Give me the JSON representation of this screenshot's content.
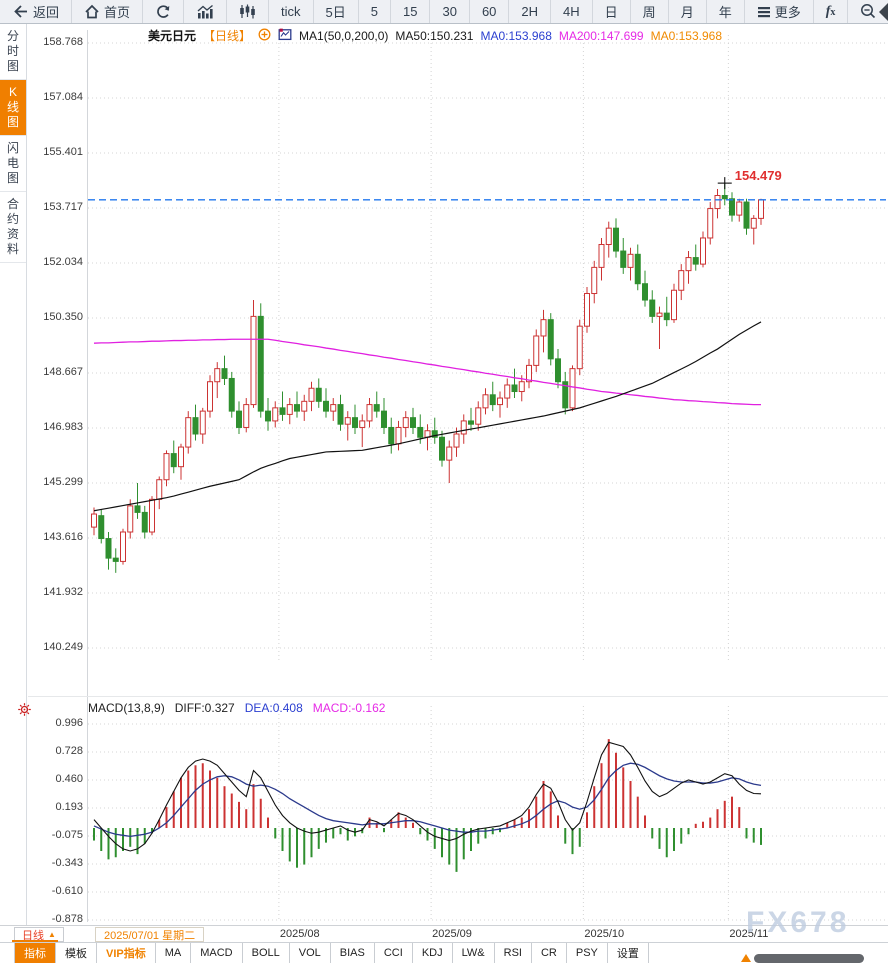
{
  "toolbar": {
    "items": [
      {
        "name": "back",
        "icon": "back",
        "label": "返回"
      },
      {
        "name": "home",
        "icon": "home",
        "label": "首页"
      },
      {
        "name": "refresh",
        "icon": "refresh"
      },
      {
        "name": "bar-chart",
        "icon": "bars"
      },
      {
        "name": "candle-chart",
        "icon": "candles"
      },
      {
        "name": "tick",
        "label": "tick"
      },
      {
        "name": "5d",
        "label": "5日"
      },
      {
        "name": "5min",
        "label": "5"
      },
      {
        "name": "15min",
        "label": "15"
      },
      {
        "name": "30min",
        "label": "30"
      },
      {
        "name": "60min",
        "label": "60"
      },
      {
        "name": "2h",
        "label": "2H"
      },
      {
        "name": "4h",
        "label": "4H"
      },
      {
        "name": "day",
        "label": "日"
      },
      {
        "name": "week",
        "label": "周"
      },
      {
        "name": "month",
        "label": "月"
      },
      {
        "name": "year",
        "label": "年"
      },
      {
        "name": "more",
        "icon": "menu",
        "label": "更多"
      },
      {
        "name": "fx-tool",
        "style": "fx",
        "label": "fx"
      },
      {
        "name": "zoom-out",
        "icon": "zoomout"
      },
      {
        "name": "zoom-in",
        "icon": "zoomin"
      }
    ]
  },
  "sidebar": {
    "items": [
      {
        "label": "分时图",
        "active": false
      },
      {
        "label": "K线图",
        "active": true
      },
      {
        "label": "闪电图",
        "active": false
      },
      {
        "label": "合约资料",
        "active": false
      }
    ]
  },
  "chart_header": {
    "symbol": "美元日元",
    "period_tag": "【日线】",
    "ma_setting": "MA1(50,0,200,0)",
    "ma50": "MA50:150.231",
    "ma0_blue": "MA0:153.968",
    "ma200": "MA200:147.699",
    "ma0_orange": "MA0:153.968"
  },
  "price_tag": "154.479",
  "macd_header": {
    "title": "MACD(13,8,9)",
    "diff": "DIFF:0.327",
    "dea": "DEA:0.408",
    "macd": "MACD:-0.162"
  },
  "xaxis": {
    "period_button": "日线",
    "date_display": "2025/07/01 星期二",
    "months": [
      "2025/08",
      "2025/09",
      "2025/10",
      "2025/11"
    ]
  },
  "watermark": "FX678",
  "bottom_tabs": [
    {
      "label": "指标",
      "active": true
    },
    {
      "label": "模板"
    },
    {
      "label": "VIP指标",
      "vip": true
    },
    {
      "label": "MA"
    },
    {
      "label": "MACD"
    },
    {
      "label": "BOLL"
    },
    {
      "label": "VOL"
    },
    {
      "label": "BIAS"
    },
    {
      "label": "CCI"
    },
    {
      "label": "KDJ"
    },
    {
      "label": "LW&"
    },
    {
      "label": "RSI"
    },
    {
      "label": "CR"
    },
    {
      "label": "PSY"
    },
    {
      "label": "设置"
    }
  ],
  "colors": {
    "accent_orange": "#f08200",
    "up_red": "#cc3333",
    "down_green": "#2f8f2f",
    "ma50_black": "#111111",
    "ma200_magenta": "#e020e0",
    "dea_blue": "#2b3a8c",
    "diff_black": "#111111",
    "dashed_blue": "#2277ee",
    "grid_gray": "#d4d4d4"
  },
  "chart_data": {
    "type": "candlestick+macd",
    "title": "美元日元 日线 (USD/JPY daily with MA50/MA200 and MACD(13,8,9))",
    "main": {
      "y_ticks": [
        "158.768",
        "157.084",
        "155.401",
        "153.717",
        "152.034",
        "150.350",
        "148.667",
        "146.983",
        "145.299",
        "143.616",
        "141.932",
        "140.249"
      ],
      "ylim": [
        140.249,
        158.768
      ],
      "last_price": 153.968,
      "high_price": 154.479,
      "month_boundaries": [
        26,
        47,
        68,
        88
      ],
      "candles": [
        [
          143.95,
          144.55,
          143.7,
          144.35
        ],
        [
          144.3,
          144.5,
          143.45,
          143.6
        ],
        [
          143.6,
          143.8,
          142.65,
          143.0
        ],
        [
          143.0,
          143.3,
          142.55,
          142.9
        ],
        [
          142.9,
          143.9,
          142.8,
          143.8
        ],
        [
          143.8,
          144.8,
          143.6,
          144.6
        ],
        [
          144.6,
          145.3,
          144.2,
          144.4
        ],
        [
          144.4,
          144.6,
          143.6,
          143.8
        ],
        [
          143.8,
          144.9,
          143.7,
          144.8
        ],
        [
          144.8,
          145.5,
          144.5,
          145.4
        ],
        [
          145.4,
          146.3,
          145.2,
          146.2
        ],
        [
          146.2,
          146.6,
          145.6,
          145.8
        ],
        [
          145.8,
          146.5,
          145.4,
          146.4
        ],
        [
          146.4,
          147.5,
          146.2,
          147.3
        ],
        [
          147.3,
          147.7,
          146.6,
          146.8
        ],
        [
          146.8,
          147.6,
          146.5,
          147.5
        ],
        [
          147.5,
          148.6,
          147.3,
          148.4
        ],
        [
          148.4,
          149.0,
          147.9,
          148.8
        ],
        [
          148.8,
          149.2,
          148.3,
          148.5
        ],
        [
          148.5,
          148.7,
          147.3,
          147.5
        ],
        [
          147.5,
          147.8,
          146.8,
          147.0
        ],
        [
          147.0,
          147.9,
          146.85,
          147.7
        ],
        [
          147.7,
          150.9,
          147.6,
          150.4
        ],
        [
          150.4,
          150.8,
          147.3,
          147.5
        ],
        [
          147.5,
          147.9,
          146.9,
          147.2
        ],
        [
          147.2,
          147.8,
          147.0,
          147.6
        ],
        [
          147.6,
          148.1,
          147.2,
          147.4
        ],
        [
          147.4,
          147.9,
          147.1,
          147.7
        ],
        [
          147.7,
          148.1,
          147.3,
          147.5
        ],
        [
          147.5,
          148.0,
          147.2,
          147.8
        ],
        [
          147.8,
          148.4,
          147.5,
          148.2
        ],
        [
          148.2,
          148.5,
          147.6,
          147.8
        ],
        [
          147.8,
          148.2,
          147.3,
          147.5
        ],
        [
          147.5,
          147.9,
          147.2,
          147.7
        ],
        [
          147.7,
          148.0,
          146.9,
          147.1
        ],
        [
          147.1,
          147.5,
          146.6,
          147.3
        ],
        [
          147.3,
          147.7,
          146.8,
          147.0
        ],
        [
          147.0,
          147.4,
          146.4,
          147.2
        ],
        [
          147.2,
          147.9,
          147.0,
          147.7
        ],
        [
          147.7,
          148.1,
          147.3,
          147.5
        ],
        [
          147.5,
          147.9,
          146.8,
          147.0
        ],
        [
          147.0,
          147.3,
          146.2,
          146.5
        ],
        [
          146.5,
          147.2,
          146.3,
          147.0
        ],
        [
          147.0,
          147.5,
          146.7,
          147.3
        ],
        [
          147.3,
          147.6,
          146.8,
          147.0
        ],
        [
          147.0,
          147.4,
          146.5,
          146.7
        ],
        [
          146.7,
          147.1,
          146.3,
          146.9
        ],
        [
          146.9,
          147.3,
          146.5,
          146.7
        ],
        [
          146.7,
          146.9,
          145.8,
          146.0
        ],
        [
          146.0,
          146.6,
          145.3,
          146.4
        ],
        [
          146.4,
          147.0,
          146.1,
          146.8
        ],
        [
          146.8,
          147.4,
          146.5,
          147.2
        ],
        [
          147.2,
          147.6,
          146.9,
          147.1
        ],
        [
          147.1,
          147.8,
          146.9,
          147.6
        ],
        [
          147.6,
          148.2,
          147.4,
          148.0
        ],
        [
          148.0,
          148.4,
          147.5,
          147.7
        ],
        [
          147.7,
          148.1,
          147.3,
          147.9
        ],
        [
          147.9,
          148.5,
          147.6,
          148.3
        ],
        [
          148.3,
          148.8,
          147.9,
          148.1
        ],
        [
          148.1,
          148.6,
          147.8,
          148.4
        ],
        [
          148.4,
          149.1,
          148.2,
          148.9
        ],
        [
          148.9,
          150.0,
          148.7,
          149.8
        ],
        [
          149.8,
          150.6,
          149.3,
          150.3
        ],
        [
          150.3,
          150.5,
          148.9,
          149.1
        ],
        [
          149.1,
          149.4,
          148.2,
          148.4
        ],
        [
          148.4,
          148.7,
          147.4,
          147.6
        ],
        [
          147.6,
          148.9,
          147.5,
          148.8
        ],
        [
          148.8,
          150.3,
          148.6,
          150.1
        ],
        [
          150.1,
          151.3,
          149.9,
          151.1
        ],
        [
          151.1,
          152.1,
          150.8,
          151.9
        ],
        [
          151.9,
          152.8,
          151.5,
          152.6
        ],
        [
          152.6,
          153.3,
          152.2,
          153.1
        ],
        [
          153.1,
          153.4,
          152.2,
          152.4
        ],
        [
          152.4,
          152.8,
          151.7,
          151.9
        ],
        [
          151.9,
          152.5,
          151.5,
          152.3
        ],
        [
          152.3,
          152.6,
          151.2,
          151.4
        ],
        [
          151.4,
          151.8,
          150.7,
          150.9
        ],
        [
          150.9,
          151.2,
          150.2,
          150.4
        ],
        [
          150.4,
          150.7,
          149.4,
          150.5
        ],
        [
          150.5,
          151.0,
          150.1,
          150.3
        ],
        [
          150.3,
          151.4,
          150.2,
          151.2
        ],
        [
          151.2,
          152.0,
          150.9,
          151.8
        ],
        [
          151.8,
          152.4,
          151.4,
          152.2
        ],
        [
          152.2,
          152.6,
          151.8,
          152.0
        ],
        [
          152.0,
          153.0,
          151.9,
          152.8
        ],
        [
          152.8,
          153.9,
          152.6,
          153.7
        ],
        [
          153.7,
          154.3,
          153.4,
          154.1
        ],
        [
          154.1,
          154.479,
          153.8,
          154.0
        ],
        [
          154.0,
          154.2,
          153.3,
          153.5
        ],
        [
          153.5,
          154.0,
          153.3,
          153.9
        ],
        [
          153.9,
          154.0,
          152.9,
          153.1
        ],
        [
          153.1,
          153.5,
          152.6,
          153.4
        ],
        [
          153.4,
          154.0,
          153.2,
          153.968
        ]
      ],
      "ma50": [
        144.45,
        144.49,
        144.53,
        144.57,
        144.61,
        144.65,
        144.69,
        144.73,
        144.77,
        144.81,
        144.85,
        144.9,
        144.96,
        145.02,
        145.08,
        145.14,
        145.2,
        145.25,
        145.3,
        145.35,
        145.4,
        145.52,
        145.64,
        145.75,
        145.83,
        145.9,
        145.98,
        146.05,
        146.09,
        146.13,
        146.17,
        146.21,
        146.25,
        146.26,
        146.27,
        146.28,
        146.29,
        146.3,
        146.34,
        146.38,
        146.42,
        146.46,
        146.5,
        146.55,
        146.6,
        146.65,
        146.7,
        146.75,
        146.79,
        146.83,
        146.87,
        146.91,
        146.95,
        146.99,
        147.03,
        147.07,
        147.11,
        147.15,
        147.19,
        147.23,
        147.27,
        147.31,
        147.35,
        147.4,
        147.45,
        147.5,
        147.55,
        147.6,
        147.67,
        147.74,
        147.81,
        147.88,
        147.95,
        148.03,
        148.11,
        148.19,
        148.27,
        148.35,
        148.46,
        148.57,
        148.68,
        148.79,
        148.9,
        149.02,
        149.15,
        149.28,
        149.4,
        149.55,
        149.7,
        149.85,
        149.98,
        150.11,
        150.23
      ],
      "ma200": [
        149.58,
        149.59,
        149.59,
        149.6,
        149.61,
        149.62,
        149.62,
        149.63,
        149.64,
        149.64,
        149.65,
        149.66,
        149.66,
        149.67,
        149.67,
        149.68,
        149.68,
        149.69,
        149.69,
        149.7,
        149.7,
        149.7,
        149.7,
        149.7,
        149.7,
        149.67,
        149.63,
        149.6,
        149.57,
        149.53,
        149.5,
        149.47,
        149.43,
        149.4,
        149.36,
        149.33,
        149.29,
        149.26,
        149.22,
        149.19,
        149.15,
        149.12,
        149.08,
        149.05,
        149.01,
        148.98,
        148.94,
        148.91,
        148.87,
        148.84,
        148.8,
        148.77,
        148.73,
        148.7,
        148.66,
        148.63,
        148.59,
        148.56,
        148.52,
        148.49,
        148.45,
        148.42,
        148.38,
        148.35,
        148.31,
        148.28,
        148.24,
        148.21,
        148.17,
        148.14,
        148.1,
        148.08,
        148.05,
        148.03,
        148.0,
        147.98,
        147.95,
        147.93,
        147.9,
        147.88,
        147.85,
        147.84,
        147.82,
        147.81,
        147.79,
        147.78,
        147.76,
        147.75,
        147.73,
        147.72,
        147.71,
        147.7,
        147.7
      ]
    },
    "macd": {
      "y_ticks": [
        "0.996",
        "0.728",
        "0.460",
        "0.193",
        "-0.075",
        "-0.343",
        "-0.610",
        "-0.878"
      ],
      "ylim": [
        -0.878,
        0.996
      ],
      "hist": [
        -0.12,
        -0.22,
        -0.3,
        -0.28,
        -0.22,
        -0.18,
        -0.25,
        -0.15,
        -0.05,
        0.08,
        0.2,
        0.35,
        0.48,
        0.55,
        0.6,
        0.62,
        0.55,
        0.48,
        0.4,
        0.33,
        0.25,
        0.18,
        0.42,
        0.28,
        0.1,
        -0.1,
        -0.22,
        -0.32,
        -0.38,
        -0.35,
        -0.28,
        -0.2,
        -0.14,
        -0.1,
        -0.06,
        -0.12,
        -0.08,
        -0.05,
        0.1,
        0.05,
        -0.04,
        0.08,
        0.15,
        0.1,
        0.05,
        -0.06,
        -0.12,
        -0.2,
        -0.28,
        -0.35,
        -0.42,
        -0.3,
        -0.22,
        -0.15,
        -0.1,
        -0.06,
        -0.04,
        0.05,
        0.08,
        0.1,
        0.18,
        0.3,
        0.45,
        0.35,
        0.12,
        -0.15,
        -0.25,
        -0.18,
        0.15,
        0.4,
        0.62,
        0.85,
        0.72,
        0.58,
        0.45,
        0.3,
        0.12,
        -0.1,
        -0.2,
        -0.28,
        -0.22,
        -0.15,
        -0.06,
        0.04,
        0.06,
        0.1,
        0.18,
        0.26,
        0.3,
        0.2,
        -0.1,
        -0.14,
        -0.162
      ],
      "diff": [
        0.08,
        0.0,
        -0.08,
        -0.15,
        -0.2,
        -0.22,
        -0.2,
        -0.15,
        -0.05,
        0.08,
        0.22,
        0.35,
        0.48,
        0.58,
        0.64,
        0.66,
        0.64,
        0.6,
        0.52,
        0.44,
        0.36,
        0.3,
        0.55,
        0.48,
        0.35,
        0.22,
        0.12,
        0.05,
        0.0,
        -0.03,
        -0.05,
        -0.04,
        -0.02,
        0.0,
        0.02,
        -0.02,
        -0.04,
        -0.02,
        0.08,
        0.06,
        0.02,
        0.08,
        0.14,
        0.12,
        0.08,
        0.02,
        -0.04,
        -0.08,
        -0.1,
        -0.12,
        -0.1,
        -0.06,
        -0.03,
        -0.01,
        0.0,
        0.01,
        0.02,
        0.05,
        0.08,
        0.12,
        0.2,
        0.32,
        0.42,
        0.38,
        0.25,
        0.08,
        -0.02,
        0.05,
        0.25,
        0.48,
        0.7,
        0.82,
        0.8,
        0.78,
        0.7,
        0.58,
        0.45,
        0.35,
        0.3,
        0.33,
        0.38,
        0.43,
        0.46,
        0.44,
        0.42,
        0.44,
        0.48,
        0.52,
        0.5,
        0.42,
        0.36,
        0.33,
        0.327
      ],
      "dea": [
        0.02,
        -0.01,
        -0.04,
        -0.06,
        -0.07,
        -0.08,
        -0.07,
        -0.06,
        -0.04,
        0.0,
        0.05,
        0.12,
        0.2,
        0.28,
        0.36,
        0.42,
        0.46,
        0.49,
        0.5,
        0.49,
        0.46,
        0.42,
        0.4,
        0.41,
        0.4,
        0.37,
        0.33,
        0.28,
        0.24,
        0.2,
        0.16,
        0.12,
        0.09,
        0.07,
        0.06,
        0.05,
        0.04,
        0.03,
        0.04,
        0.04,
        0.04,
        0.05,
        0.06,
        0.07,
        0.07,
        0.06,
        0.04,
        0.02,
        0.0,
        -0.02,
        -0.03,
        -0.04,
        -0.04,
        -0.03,
        -0.03,
        -0.02,
        -0.01,
        0.0,
        0.02,
        0.04,
        0.07,
        0.12,
        0.18,
        0.23,
        0.26,
        0.24,
        0.2,
        0.18,
        0.2,
        0.27,
        0.37,
        0.48,
        0.55,
        0.6,
        0.62,
        0.61,
        0.58,
        0.54,
        0.5,
        0.47,
        0.45,
        0.44,
        0.44,
        0.44,
        0.43,
        0.43,
        0.44,
        0.46,
        0.48,
        0.47,
        0.44,
        0.42,
        0.408
      ]
    }
  }
}
